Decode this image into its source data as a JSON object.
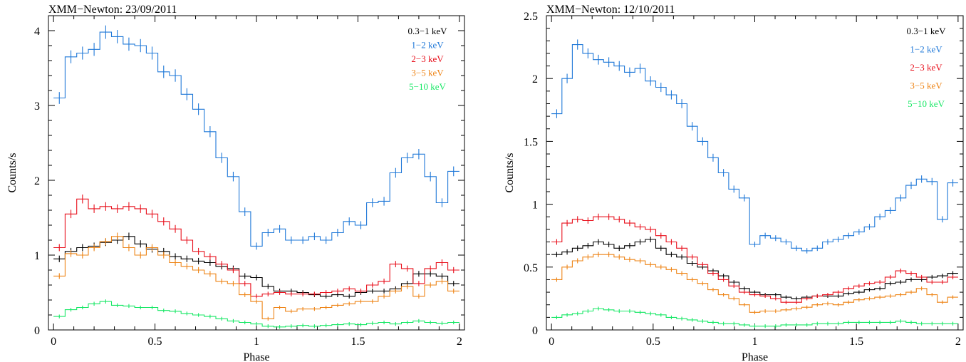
{
  "chart_data": [
    {
      "type": "line",
      "title": "XMM−Newton: 23/09/2011",
      "xlabel": "Phase",
      "ylabel": "Counts/s",
      "xlim": [
        -0.025,
        2.025
      ],
      "ylim": [
        0,
        4.2
      ],
      "xticks": [
        0,
        0.5,
        1,
        1.5,
        2
      ],
      "xtick_labels": [
        "0",
        "0.5",
        "1",
        "1.5",
        "2"
      ],
      "yticks": [
        0,
        1,
        2,
        3,
        4
      ],
      "ytick_labels": [
        "0",
        "1",
        "2",
        "3",
        "4"
      ],
      "legend_position": "top-right",
      "series": [
        {
          "name": "0.3−1 keV",
          "color": "#000000",
          "values": [
            0.95,
            1.05,
            1.1,
            1.12,
            1.17,
            1.2,
            1.25,
            1.15,
            1.08,
            1.05,
            0.98,
            0.95,
            0.92,
            0.9,
            0.85,
            0.82,
            0.72,
            0.7,
            0.58,
            0.52,
            0.52,
            0.5,
            0.47,
            0.45,
            0.47,
            0.45,
            0.5,
            0.52,
            0.52,
            0.55,
            0.62,
            0.75,
            0.75,
            0.72,
            0.62
          ]
        },
        {
          "name": "1−2 keV",
          "color": "#1f78d8",
          "values": [
            3.1,
            3.65,
            3.7,
            3.75,
            3.98,
            3.92,
            3.82,
            3.8,
            3.7,
            3.45,
            3.4,
            3.15,
            2.95,
            2.65,
            2.3,
            2.05,
            1.58,
            1.12,
            1.3,
            1.35,
            1.2,
            1.2,
            1.25,
            1.2,
            1.3,
            1.45,
            1.4,
            1.7,
            1.72,
            2.1,
            2.3,
            2.35,
            2.05,
            1.7,
            2.12
          ]
        },
        {
          "name": "2−3 keV",
          "color": "#e8101c",
          "values": [
            1.1,
            1.55,
            1.75,
            1.62,
            1.65,
            1.62,
            1.65,
            1.62,
            1.55,
            1.45,
            1.35,
            1.2,
            1.05,
            0.98,
            0.88,
            0.8,
            0.62,
            0.45,
            0.48,
            0.5,
            0.48,
            0.48,
            0.48,
            0.5,
            0.52,
            0.55,
            0.52,
            0.6,
            0.65,
            0.88,
            0.82,
            0.62,
            0.82,
            0.9,
            0.8
          ]
        },
        {
          "name": "3−5 keV",
          "color": "#ee8416",
          "values": [
            0.72,
            1.02,
            1.0,
            1.1,
            1.18,
            1.25,
            1.1,
            1.0,
            1.1,
            1.0,
            0.9,
            0.85,
            0.8,
            0.75,
            0.65,
            0.62,
            0.47,
            0.38,
            0.15,
            0.3,
            0.25,
            0.28,
            0.28,
            0.3,
            0.33,
            0.35,
            0.38,
            0.38,
            0.45,
            0.52,
            0.58,
            0.45,
            0.6,
            0.65,
            0.52
          ]
        },
        {
          "name": "5−10 keV",
          "color": "#18e866",
          "values": [
            0.18,
            0.27,
            0.3,
            0.35,
            0.38,
            0.33,
            0.32,
            0.3,
            0.3,
            0.26,
            0.25,
            0.22,
            0.2,
            0.18,
            0.15,
            0.12,
            0.1,
            0.08,
            0.05,
            0.04,
            0.05,
            0.06,
            0.05,
            0.06,
            0.07,
            0.08,
            0.07,
            0.09,
            0.1,
            0.08,
            0.1,
            0.12,
            0.1,
            0.09,
            0.1
          ]
        }
      ]
    },
    {
      "type": "line",
      "title": "XMM−Newton: 12/10/2011",
      "xlabel": "Phase",
      "ylabel": "Counts/s",
      "xlim": [
        -0.025,
        2.025
      ],
      "ylim": [
        0,
        2.5
      ],
      "xticks": [
        0,
        0.5,
        1,
        1.5,
        2
      ],
      "xtick_labels": [
        "0",
        "0.5",
        "1",
        "1.5",
        "2"
      ],
      "yticks": [
        0,
        0.5,
        1,
        1.5,
        2,
        2.5
      ],
      "ytick_labels": [
        "0",
        "0.5",
        "1",
        "1.5",
        "2",
        "2.5"
      ],
      "legend_position": "top-right",
      "series": [
        {
          "name": "0.3−1 keV",
          "color": "#000000",
          "values": [
            0.6,
            0.62,
            0.65,
            0.67,
            0.7,
            0.68,
            0.65,
            0.67,
            0.7,
            0.72,
            0.65,
            0.6,
            0.58,
            0.53,
            0.5,
            0.47,
            0.43,
            0.38,
            0.33,
            0.3,
            0.28,
            0.28,
            0.26,
            0.25,
            0.26,
            0.27,
            0.27,
            0.27,
            0.29,
            0.3,
            0.32,
            0.33,
            0.37,
            0.38,
            0.4,
            0.4,
            0.42,
            0.43,
            0.45
          ]
        },
        {
          "name": "1−2 keV",
          "color": "#1f78d8",
          "values": [
            1.72,
            2.0,
            2.27,
            2.2,
            2.15,
            2.13,
            2.1,
            2.05,
            2.08,
            1.98,
            1.93,
            1.87,
            1.8,
            1.62,
            1.5,
            1.37,
            1.25,
            1.12,
            1.05,
            0.68,
            0.75,
            0.73,
            0.7,
            0.65,
            0.63,
            0.65,
            0.7,
            0.72,
            0.75,
            0.78,
            0.82,
            0.9,
            0.95,
            1.05,
            1.15,
            1.2,
            1.18,
            0.88,
            1.17
          ]
        },
        {
          "name": "2−3 keV",
          "color": "#e8101c",
          "values": [
            0.7,
            0.85,
            0.88,
            0.87,
            0.9,
            0.9,
            0.88,
            0.85,
            0.82,
            0.8,
            0.75,
            0.7,
            0.65,
            0.58,
            0.52,
            0.45,
            0.4,
            0.35,
            0.3,
            0.28,
            0.27,
            0.25,
            0.22,
            0.22,
            0.25,
            0.27,
            0.28,
            0.3,
            0.33,
            0.35,
            0.37,
            0.38,
            0.42,
            0.47,
            0.45,
            0.42,
            0.38,
            0.38,
            0.42
          ]
        },
        {
          "name": "3−5 keV",
          "color": "#ee8416",
          "values": [
            0.4,
            0.5,
            0.55,
            0.58,
            0.6,
            0.6,
            0.58,
            0.56,
            0.55,
            0.52,
            0.5,
            0.48,
            0.45,
            0.4,
            0.37,
            0.32,
            0.28,
            0.25,
            0.2,
            0.14,
            0.15,
            0.15,
            0.16,
            0.17,
            0.18,
            0.2,
            0.21,
            0.2,
            0.22,
            0.24,
            0.25,
            0.26,
            0.27,
            0.28,
            0.3,
            0.33,
            0.28,
            0.22,
            0.26
          ]
        },
        {
          "name": "5−10 keV",
          "color": "#18e866",
          "values": [
            0.1,
            0.12,
            0.13,
            0.15,
            0.17,
            0.16,
            0.15,
            0.15,
            0.14,
            0.13,
            0.12,
            0.1,
            0.09,
            0.08,
            0.07,
            0.06,
            0.05,
            0.05,
            0.04,
            0.03,
            0.03,
            0.03,
            0.04,
            0.04,
            0.04,
            0.05,
            0.05,
            0.05,
            0.06,
            0.06,
            0.06,
            0.06,
            0.06,
            0.07,
            0.06,
            0.05,
            0.05,
            0.05,
            0.05
          ]
        }
      ]
    }
  ]
}
